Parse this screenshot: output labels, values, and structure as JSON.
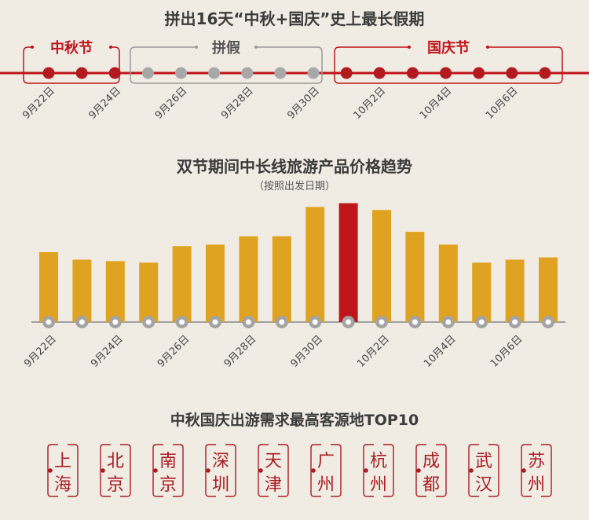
{
  "header": {
    "title": "拼出16天“中秋+国庆”史上最长假期"
  },
  "timeline": {
    "groups": [
      {
        "label": "中秋节",
        "color": "#c0141b",
        "count": 3
      },
      {
        "label": "拼假",
        "color": "#555555",
        "count": 6
      },
      {
        "label": "国庆节",
        "color": "#c0141b",
        "count": 7
      }
    ],
    "tick_labels": [
      "9月22日",
      "9月24日",
      "9月26日",
      "9月28日",
      "9月30日",
      "10月2日",
      "10月4日",
      "10月6日"
    ],
    "colors": {
      "line": "#c0141b",
      "red_dot": "#b21a1f",
      "grey_dot": "#a8a8a8"
    }
  },
  "chart_data": {
    "type": "bar",
    "title": "双节期间中长线旅游产品价格趋势",
    "subtitle": "（按照出发日期）",
    "tick_labels": [
      "9月22日",
      "9月24日",
      "9月26日",
      "9月28日",
      "9月30日",
      "10月2日",
      "10月4日",
      "10月6日"
    ],
    "values": [
      93,
      83,
      81,
      79,
      101,
      103,
      114,
      114,
      153,
      158,
      149,
      120,
      103,
      79,
      83,
      86
    ],
    "highlight_index": 9,
    "colors": {
      "bar": "#e0a321",
      "highlight": "#c0141b",
      "baseline": "#a0a0a0"
    },
    "ylim": [
      0,
      165
    ]
  },
  "cities": {
    "title": "中秋国庆出游需求最高客源地TOP10",
    "items": [
      [
        "上",
        "海"
      ],
      [
        "北",
        "京"
      ],
      [
        "南",
        "京"
      ],
      [
        "深",
        "圳"
      ],
      [
        "天",
        "津"
      ],
      [
        "广",
        "州"
      ],
      [
        "杭",
        "州"
      ],
      [
        "成",
        "都"
      ],
      [
        "武",
        "汉"
      ],
      [
        "苏",
        "州"
      ]
    ],
    "color": "#a81c22"
  }
}
